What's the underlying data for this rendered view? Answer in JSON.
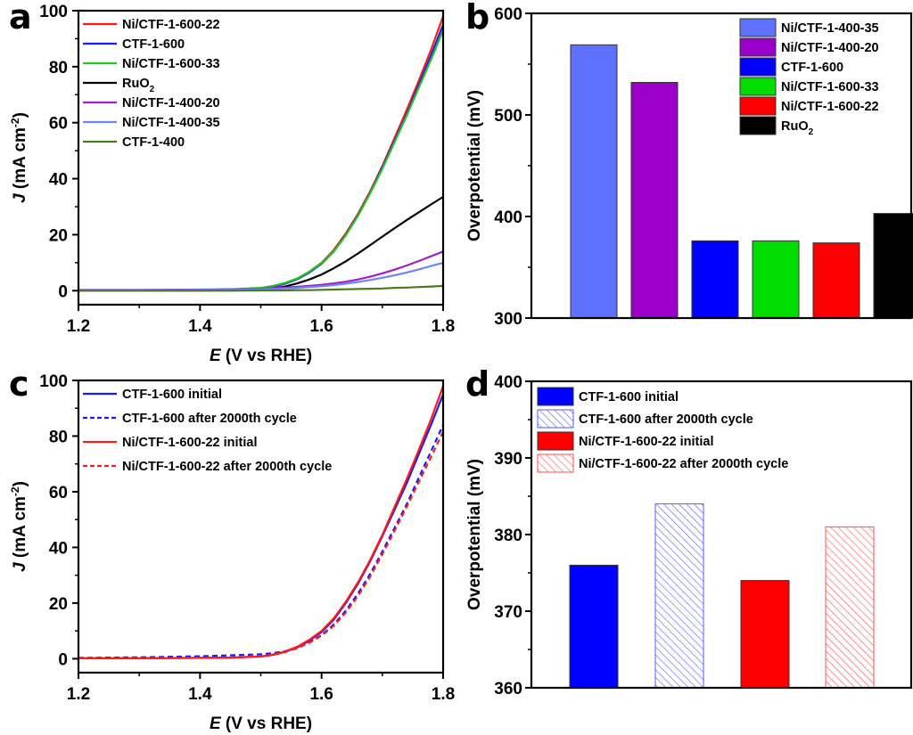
{
  "chart_data": [
    {
      "panel": "a",
      "type": "line",
      "xlabel_italic": "E",
      "xlabel_rest": " (V vs RHE)",
      "ylabel_italic": "J",
      "ylabel_rest": " (mA cm",
      "ylabel_sup": "-2",
      "ylabel_close": ")",
      "xlim": [
        1.2,
        1.8
      ],
      "ylim": [
        -5,
        100
      ],
      "xticks": [
        "1.2",
        "1.4",
        "1.6",
        "1.8"
      ],
      "yticks": [
        "0",
        "20",
        "40",
        "60",
        "80",
        "100"
      ],
      "legend_position": "top-left",
      "x": [
        1.2,
        1.3,
        1.4,
        1.45,
        1.5,
        1.52,
        1.54,
        1.56,
        1.58,
        1.6,
        1.62,
        1.64,
        1.66,
        1.68,
        1.7,
        1.72,
        1.74,
        1.76,
        1.78,
        1.8
      ],
      "series": [
        {
          "name": "Ni/CTF-1-600-22",
          "color": "#ff1a1a",
          "values": [
            0.2,
            0.2,
            0.3,
            0.4,
            0.8,
            1.5,
            2.6,
            4.3,
            6.8,
            10.0,
            14.5,
            20.5,
            27.5,
            35.5,
            44.5,
            54.5,
            64.5,
            75.0,
            86.0,
            98.0
          ]
        },
        {
          "name": "CTF-1-600",
          "color": "#1a1aff",
          "values": [
            0.2,
            0.2,
            0.3,
            0.4,
            0.8,
            1.4,
            2.5,
            4.1,
            6.5,
            9.6,
            14.0,
            20.0,
            27.0,
            35.0,
            44.0,
            53.5,
            63.0,
            73.5,
            84.0,
            95.0
          ]
        },
        {
          "name": "Ni/CTF-1-600-33",
          "color": "#1ec81e",
          "values": [
            0.2,
            0.2,
            0.3,
            0.5,
            1.0,
            1.7,
            2.8,
            4.4,
            6.8,
            9.8,
            14.0,
            19.8,
            26.8,
            34.8,
            43.5,
            53.0,
            62.5,
            72.5,
            82.5,
            93.0
          ]
        },
        {
          "name": "RuO₂",
          "color": "#000000",
          "values": [
            0.1,
            0.1,
            0.1,
            0.2,
            0.4,
            0.8,
            1.5,
            2.6,
            4.0,
            5.8,
            8.0,
            10.5,
            13.3,
            16.3,
            19.3,
            22.3,
            25.2,
            28.0,
            30.8,
            33.5
          ]
        },
        {
          "name": "Ni/CTF-1-400-20",
          "color": "#a020c8",
          "values": [
            0.3,
            0.3,
            0.4,
            0.5,
            0.7,
            0.9,
            1.1,
            1.4,
            1.7,
            2.1,
            2.6,
            3.2,
            4.0,
            5.0,
            6.2,
            7.5,
            9.0,
            10.6,
            12.3,
            14.0
          ]
        },
        {
          "name": "Ni/CTF-1-400-35",
          "color": "#6e86f5",
          "values": [
            0.2,
            0.2,
            0.3,
            0.3,
            0.5,
            0.6,
            0.8,
            1.0,
            1.3,
            1.6,
            2.0,
            2.5,
            3.1,
            3.8,
            4.6,
            5.5,
            6.5,
            7.6,
            8.8,
            10.0
          ]
        },
        {
          "name": "CTF-1-400",
          "color": "#4a7a1e",
          "values": [
            0.0,
            0.0,
            0.0,
            0.0,
            0.1,
            0.1,
            0.1,
            0.2,
            0.2,
            0.3,
            0.4,
            0.5,
            0.6,
            0.7,
            0.8,
            1.0,
            1.1,
            1.3,
            1.5,
            1.7
          ]
        }
      ]
    },
    {
      "panel": "b",
      "type": "bar",
      "ylabel": "Overpotential (mV)",
      "ylim": [
        300,
        600
      ],
      "yticks": [
        "300",
        "400",
        "500",
        "600"
      ],
      "legend_position": "top-right",
      "categories": [
        "Ni/CTF-1-400-35",
        "Ni/CTF-1-400-20",
        "CTF-1-600",
        "Ni/CTF-1-600-33",
        "Ni/CTF-1-600-22",
        "RuO₂"
      ],
      "values": [
        569,
        532,
        376,
        376,
        374,
        403
      ],
      "colors": [
        "#5f72ff",
        "#9a00c8",
        "#0000ff",
        "#00dc00",
        "#ff0000",
        "#000000"
      ]
    },
    {
      "panel": "c",
      "type": "line",
      "xlabel_italic": "E",
      "xlabel_rest": " (V vs RHE)",
      "ylabel_italic": "J",
      "ylabel_rest": " (mA cm",
      "ylabel_sup": "-2",
      "ylabel_close": ")",
      "xlim": [
        1.2,
        1.8
      ],
      "ylim": [
        -5,
        100
      ],
      "xticks": [
        "1.2",
        "1.4",
        "1.6",
        "1.8"
      ],
      "yticks": [
        "0",
        "20",
        "40",
        "60",
        "80",
        "100"
      ],
      "legend_position": "top-left",
      "x": [
        1.2,
        1.3,
        1.4,
        1.45,
        1.5,
        1.52,
        1.54,
        1.56,
        1.58,
        1.6,
        1.62,
        1.64,
        1.66,
        1.68,
        1.7,
        1.72,
        1.74,
        1.76,
        1.78,
        1.8
      ],
      "series": [
        {
          "name": "CTF-1-600 initial",
          "color": "#1a1aff",
          "dash": false,
          "values": [
            0.2,
            0.2,
            0.3,
            0.4,
            0.8,
            1.4,
            2.5,
            4.1,
            6.5,
            9.6,
            14.0,
            20.0,
            27.0,
            35.0,
            44.0,
            53.5,
            63.0,
            73.5,
            84.0,
            95.0
          ]
        },
        {
          "name": "CTF-1-600 after 2000th cycle",
          "color": "#1a1aff",
          "dash": true,
          "values": [
            0.3,
            0.5,
            0.9,
            1.2,
            1.6,
            2.0,
            2.7,
            3.8,
            5.8,
            8.5,
            12.3,
            17.3,
            23.5,
            30.5,
            38.5,
            47.0,
            55.5,
            65.0,
            74.5,
            84.0
          ]
        },
        {
          "name": "Ni/CTF-1-600-22 initial",
          "color": "#ff1a1a",
          "dash": false,
          "values": [
            0.2,
            0.2,
            0.3,
            0.4,
            0.8,
            1.5,
            2.6,
            4.3,
            6.8,
            10.0,
            14.5,
            20.5,
            27.5,
            35.5,
            44.5,
            54.5,
            64.5,
            75.0,
            86.0,
            98.0
          ]
        },
        {
          "name": "Ni/CTF-1-600-22 after 2000th cycle",
          "color": "#ff1a1a",
          "dash": true,
          "values": [
            0.2,
            0.2,
            0.3,
            0.4,
            0.8,
            1.4,
            2.4,
            3.8,
            5.8,
            8.3,
            11.8,
            16.6,
            22.6,
            29.5,
            37.5,
            46.0,
            54.5,
            63.5,
            72.5,
            81.5
          ]
        }
      ]
    },
    {
      "panel": "d",
      "type": "bar",
      "ylabel": "Overpotential (mV)",
      "ylim": [
        360,
        400
      ],
      "yticks": [
        "360",
        "370",
        "380",
        "390",
        "400"
      ],
      "legend_position": "top-left",
      "categories": [
        "CTF-1-600 initial",
        "CTF-1-600 after 2000th cycle",
        "Ni/CTF-1-600-22 initial",
        "Ni/CTF-1-600-22 after 2000th cycle"
      ],
      "values": [
        376,
        384,
        374,
        381
      ],
      "colors": [
        "#0000ff",
        "#5a5aff",
        "#ff0000",
        "#ff5050"
      ],
      "hatched": [
        false,
        true,
        false,
        true
      ]
    }
  ],
  "panel_labels": [
    "a",
    "b",
    "c",
    "d"
  ]
}
